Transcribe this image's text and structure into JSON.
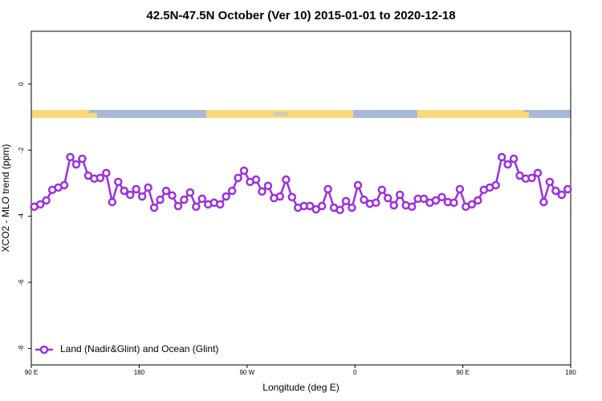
{
  "chart_data": {
    "type": "line",
    "title": "42.5N-47.5N October (Ver 10)   2015-01-01 to 2020-12-18",
    "x_label": "Longitude (deg E)",
    "y_label": "XCO2 - MLO trend (ppm)",
    "x": [
      92.5,
      97.5,
      102.5,
      107.5,
      112.5,
      117.5,
      122.5,
      127.5,
      132.5,
      137.5,
      142.5,
      147.5,
      152.5,
      157.5,
      162.5,
      167.5,
      172.5,
      177.5,
      182.5,
      187.5,
      192.5,
      197.5,
      202.5,
      207.5,
      212.5,
      217.5,
      222.5,
      227.5,
      232.5,
      237.5,
      242.5,
      247.5,
      252.5,
      257.5,
      262.5,
      267.5,
      272.5,
      277.5,
      282.5,
      287.5,
      292.5,
      297.5,
      302.5,
      307.5,
      312.5,
      317.5,
      322.5,
      327.5,
      332.5,
      337.5,
      342.5,
      347.5,
      352.5,
      357.5,
      362.5,
      367.5,
      372.5,
      377.5,
      382.5,
      387.5,
      392.5,
      397.5,
      402.5,
      407.5,
      412.5,
      417.5,
      422.5,
      427.5,
      432.5,
      437.5,
      442.5,
      447.5,
      452.5,
      457.5,
      462.5,
      467.5,
      472.5,
      477.5,
      482.5,
      487.5,
      492.5,
      497.5,
      502.5,
      507.5,
      512.5,
      517.5,
      522.5,
      527.5,
      532.5,
      537.5
    ],
    "series": [
      {
        "name": "Land (Nadir&Glint) and Ocean (Glint)",
        "color": "#9b30e0",
        "values": [
          -3.71,
          -3.64,
          -3.52,
          -3.2,
          -3.13,
          -3.06,
          -2.21,
          -2.43,
          -2.26,
          -2.77,
          -2.86,
          -2.84,
          -2.69,
          -3.57,
          -2.96,
          -3.23,
          -3.35,
          -3.18,
          -3.4,
          -3.13,
          -3.74,
          -3.5,
          -3.23,
          -3.37,
          -3.69,
          -3.5,
          -3.28,
          -3.71,
          -3.47,
          -3.64,
          -3.59,
          -3.64,
          -3.4,
          -3.23,
          -2.84,
          -2.62,
          -2.96,
          -2.89,
          -3.25,
          -3.08,
          -3.45,
          -3.4,
          -2.89,
          -3.42,
          -3.74,
          -3.69,
          -3.69,
          -3.79,
          -3.69,
          -3.18,
          -3.74,
          -3.81,
          -3.54,
          -3.74,
          -3.06,
          -3.5,
          -3.62,
          -3.59,
          -3.2,
          -3.45,
          -3.67,
          -3.35,
          -3.67,
          -3.71,
          -3.47,
          -3.47,
          -3.59,
          -3.52,
          -3.42,
          -3.57,
          -3.59,
          -3.18,
          -3.71,
          -3.64,
          -3.52,
          -3.2,
          -3.13,
          -3.06,
          -2.21,
          -2.43,
          -2.26,
          -2.77,
          -2.86,
          -2.84,
          -2.69,
          -3.57,
          -2.96,
          -3.23,
          -3.35,
          -3.18
        ]
      }
    ],
    "xlim": [
      90,
      540
    ],
    "xticks": [
      {
        "value": 90,
        "label": "90 E"
      },
      180,
      {
        "value": 270,
        "label": "90 W"
      },
      {
        "value": 360,
        "label": "0"
      },
      {
        "value": 450,
        "label": "90 E"
      },
      {
        "value": 540,
        "label": "180"
      }
    ],
    "ylim": [
      -8.5,
      1.6
    ],
    "yticks": [
      0,
      -2,
      -4,
      -6,
      -8
    ],
    "legend": "bottom-left"
  }
}
